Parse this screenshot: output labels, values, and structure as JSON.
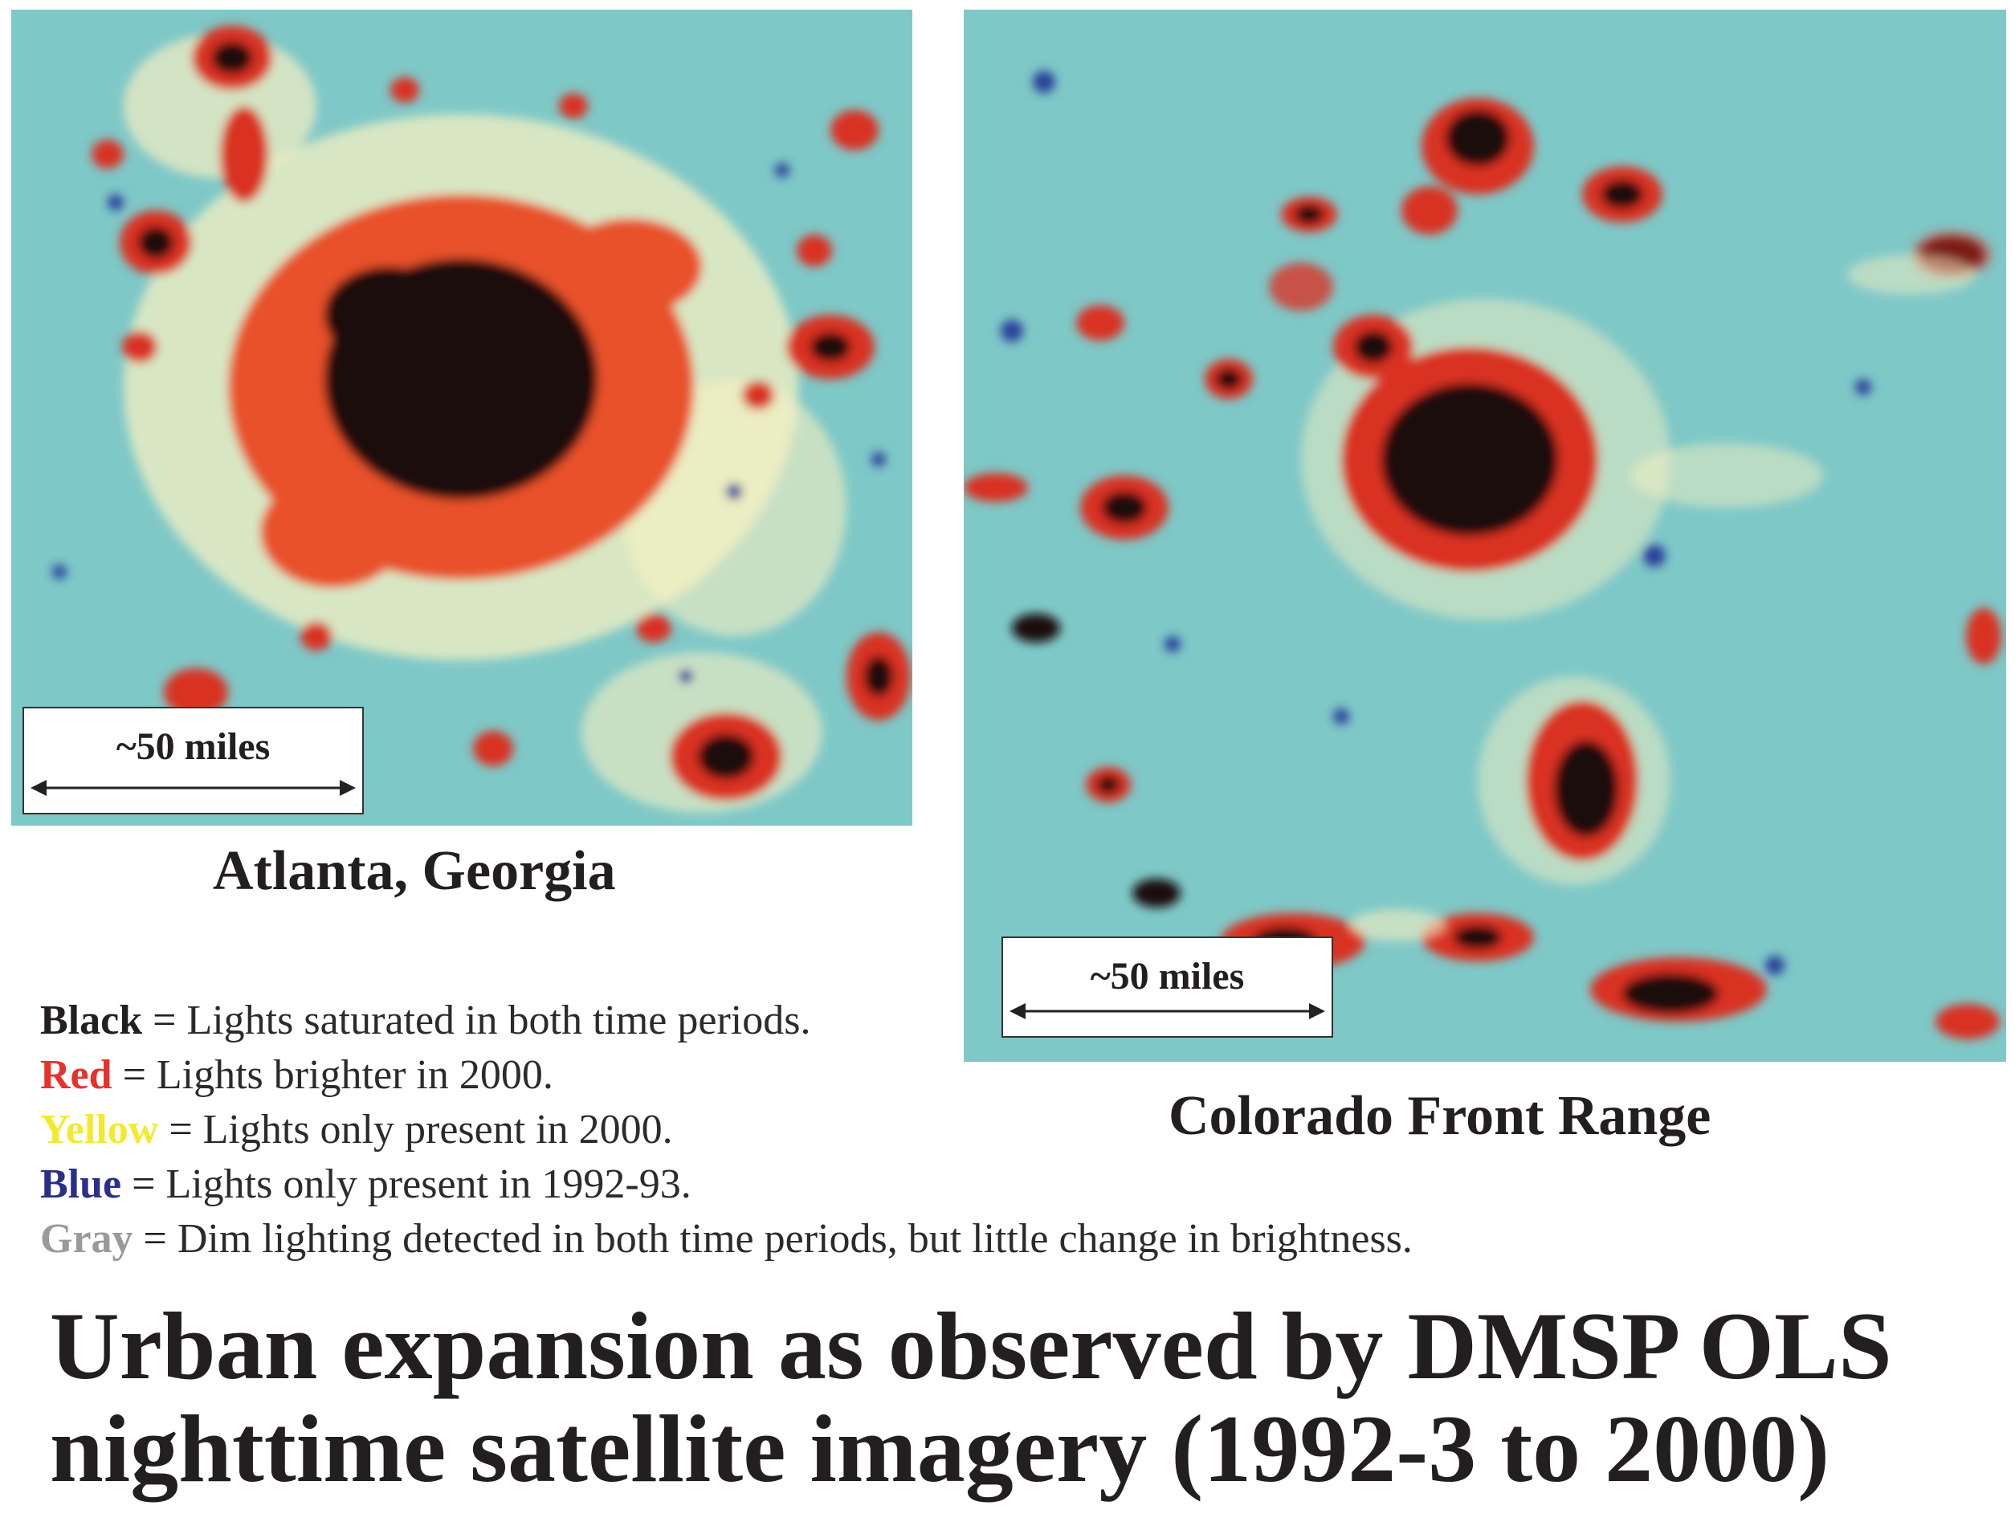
{
  "atlanta": {
    "caption": "Atlanta, Georgia",
    "scale_label": "~50 miles"
  },
  "colorado": {
    "caption": "Colorado Front Range",
    "scale_label": "~50 miles"
  },
  "legend": [
    {
      "key": "Black",
      "separator": " = ",
      "desc": "Lights saturated in both time periods.",
      "color": "#231f20"
    },
    {
      "key": "Red",
      "separator": " = ",
      "desc": "Lights brighter in 2000.",
      "color": "#e8312a"
    },
    {
      "key": "Yellow",
      "separator": " = ",
      "desc": "Lights only present in 2000.",
      "color": "#f2ea2f"
    },
    {
      "key": "Blue",
      "separator": " = ",
      "desc": "Lights only present in 1992-93.",
      "color": "#2a2f8a"
    },
    {
      "key": "Gray",
      "separator": " = ",
      "desc": "Dim lighting detected in both time periods, but little change in brightness.",
      "color": "#9a9a9a"
    }
  ],
  "title": {
    "line1": "Urban expansion as observed by DMSP OLS",
    "line2": "nighttime satellite imagery (1992-3 to 2000)"
  },
  "colors": {
    "background_sea": "#7fc8c8",
    "saturated": "#1a0d0d",
    "brighter": "#d93224",
    "new_light": "#f6f0c2",
    "old_light": "#2b3f9a"
  }
}
